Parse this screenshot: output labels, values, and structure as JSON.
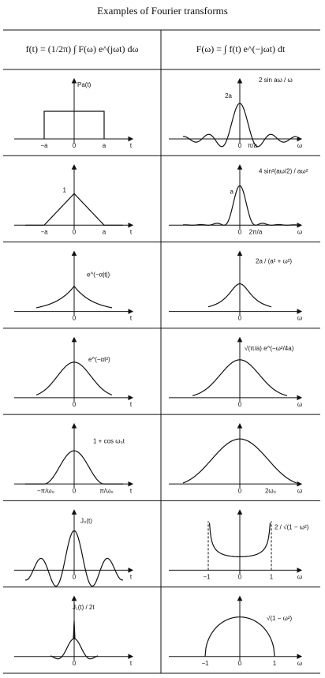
{
  "title": "Examples of Fourier transforms",
  "header": [
    "f(t) = (1/2π) ∫ F(ω) e^(jωt) dω",
    "F(ω) = ∫ f(t) e^(−jωt) dt"
  ],
  "rows": [
    {
      "left": {
        "label": "Pa(t)",
        "ticks": [
          "−a",
          "0",
          "a"
        ],
        "axis": "t"
      },
      "right": {
        "label": "2 sin aω / ω",
        "peak": "2a",
        "ticks": [
          "0",
          "π/a"
        ],
        "axis": "ω"
      }
    },
    {
      "left": {
        "label": "",
        "peak": "1",
        "ticks": [
          "−a",
          "0",
          "a"
        ],
        "axis": "t"
      },
      "right": {
        "label": "4 sin²(aω/2) / aω²",
        "peak": "a",
        "ticks": [
          "0",
          "2π/a"
        ],
        "axis": "ω"
      }
    },
    {
      "left": {
        "label": "e^(−α|t|)",
        "ticks": [
          "0"
        ],
        "axis": "t"
      },
      "right": {
        "label": "2a / (a² + ω²)",
        "ticks": [
          "0"
        ],
        "axis": "ω"
      }
    },
    {
      "left": {
        "label": "e^(−αt²)",
        "ticks": [
          "0"
        ],
        "axis": "t"
      },
      "right": {
        "label": "√(π/a) e^(−ω²/4a)",
        "ticks": [
          "0"
        ],
        "axis": "ω"
      }
    },
    {
      "left": {
        "label": "1 + cos ω₀t",
        "ticks": [
          "−π/ω₀",
          "0",
          "π/ω₀"
        ],
        "axis": "t"
      },
      "right": {
        "label": "",
        "ticks": [
          "0",
          "2ω₀"
        ],
        "axis": "ω"
      }
    },
    {
      "left": {
        "label": "J₀(t)",
        "ticks": [
          "0"
        ],
        "axis": "t"
      },
      "right": {
        "label": "2 / √(1 − ω²)",
        "ticks": [
          "−1",
          "0",
          "1"
        ],
        "axis": "ω"
      }
    },
    {
      "left": {
        "label": "J₁(t) / 2t",
        "ticks": [
          "0"
        ],
        "axis": "t"
      },
      "right": {
        "label": "√(1 − ω²)",
        "ticks": [
          "−1",
          "0",
          "1"
        ],
        "axis": "ω"
      }
    }
  ]
}
